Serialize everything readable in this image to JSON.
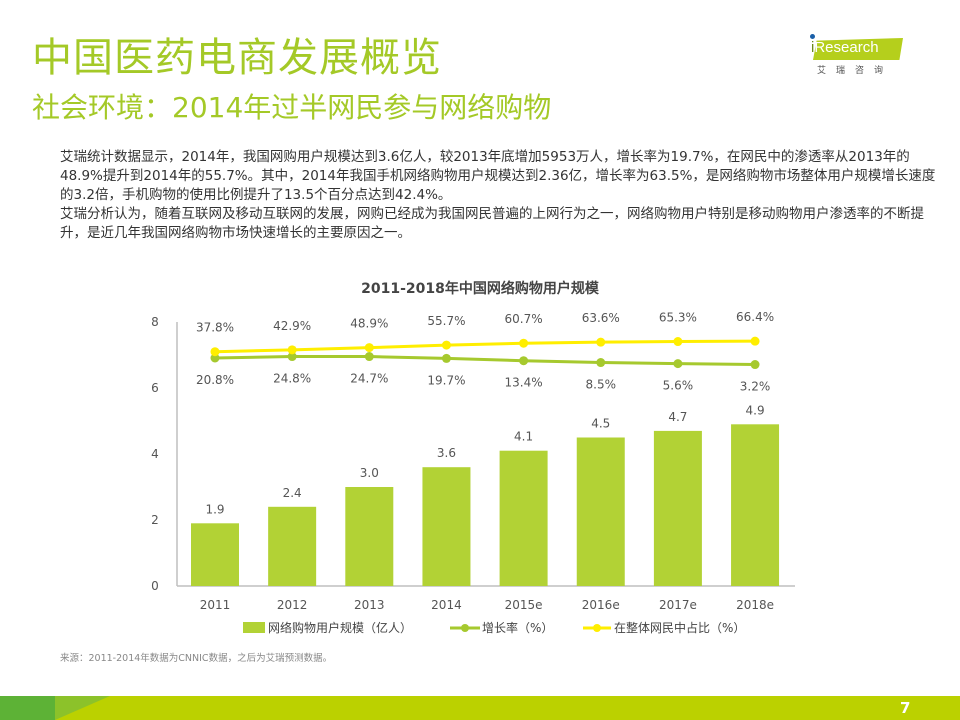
{
  "header": {
    "title": "中国医药电商发展概览",
    "subtitle": "社会环境：2014年过半网民参与网络购物"
  },
  "logo": {
    "brand_prefix": "i",
    "brand_text": "Research",
    "brand_cn": "艾瑞咨询",
    "colors": {
      "bar": "#b5cf1c",
      "dot": "#1a5fa8"
    }
  },
  "body": {
    "paragraphs": [
      "艾瑞统计数据显示，2014年，我国网购用户规模达到3.6亿人，较2013年底增加5953万人，增长率为19.7%，在网民中的渗透率从2013年的48.9%提升到2014年的55.7%。其中，2014年我国手机网络购物用户规模达到2.36亿，增长率为63.5%，是网络购物市场整体用户规模增长速度的3.2倍，手机购物的使用比例提升了13.5个百分点达到42.4%。",
      "艾瑞分析认为，随着互联网及移动互联网的发展，网购已经成为我国网民普遍的上网行为之一，网络购物用户特别是移动购物用户渗透率的不断提升，是近几年我国网络购物市场快速增长的主要原因之一。"
    ]
  },
  "chart_data": {
    "type": "bar",
    "title": "2011-2018年中国网络购物用户规模",
    "categories": [
      "2011",
      "2012",
      "2013",
      "2014",
      "2015e",
      "2016e",
      "2017e",
      "2018e"
    ],
    "xlabel": "",
    "ylabel": "",
    "ylim": [
      0,
      8
    ],
    "yticks": [
      "0",
      "2",
      "4",
      "6",
      "8"
    ],
    "grid": false,
    "legend_position": "bottom",
    "series": [
      {
        "name": "网络购物用户规模（亿人）",
        "type": "bar",
        "axis": "primary",
        "color": "#b2d235",
        "values": [
          1.9,
          2.4,
          3.0,
          3.6,
          4.1,
          4.5,
          4.7,
          4.9
        ],
        "labels": [
          "1.9",
          "2.4",
          "3.0",
          "3.6",
          "4.1",
          "4.5",
          "4.7",
          "4.9"
        ]
      },
      {
        "name": "增长率（%）",
        "type": "line",
        "axis": "secondary",
        "color": "#a6c92e",
        "values": [
          20.8,
          24.8,
          24.7,
          19.7,
          13.4,
          8.5,
          5.6,
          3.2
        ],
        "labels": [
          "20.8%",
          "24.8%",
          "24.7%",
          "19.7%",
          "13.4%",
          "8.5%",
          "5.6%",
          "3.2%"
        ]
      },
      {
        "name": "在整体网民中占比（%）",
        "type": "line",
        "axis": "secondary",
        "color": "#ffee00",
        "values": [
          37.8,
          42.9,
          48.9,
          55.7,
          60.7,
          63.6,
          65.3,
          66.4
        ],
        "labels": [
          "37.8%",
          "42.9%",
          "48.9%",
          "55.7%",
          "60.7%",
          "63.6%",
          "65.3%",
          "66.4%"
        ]
      }
    ]
  },
  "footer": {
    "source": "来源：2011-2014年数据为CNNIC数据，之后为艾瑞预测数据。",
    "page_number": "7"
  }
}
